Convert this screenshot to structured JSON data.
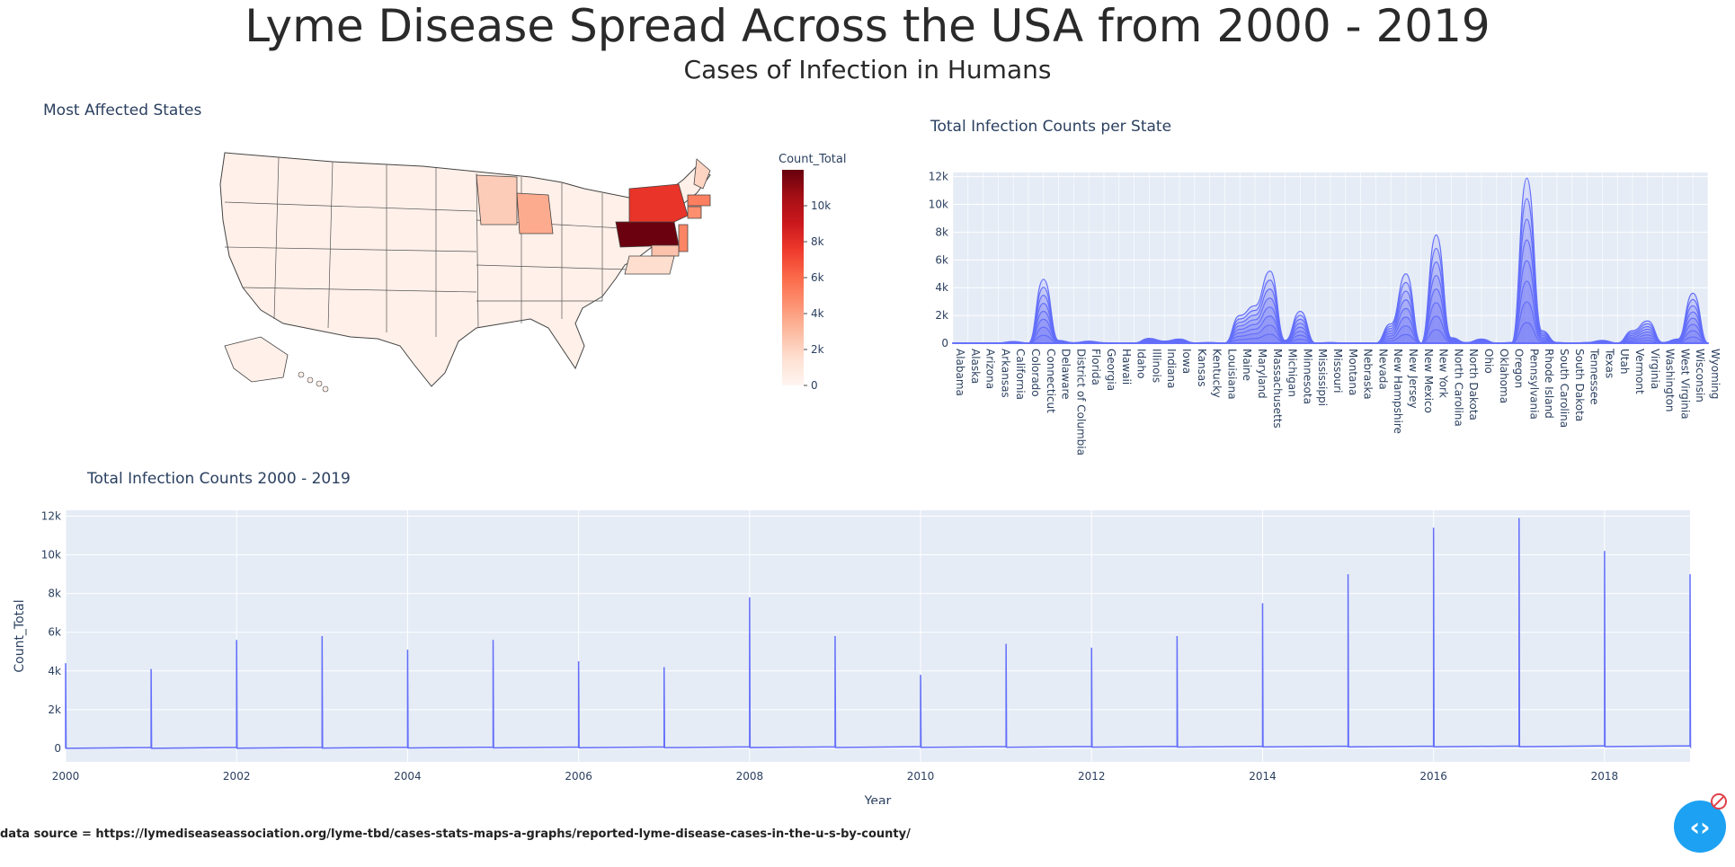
{
  "header": {
    "title": "Lyme Disease Spread Across the USA from 2000 - 2019",
    "subtitle": "Cases of Infection in Humans"
  },
  "footer": {
    "source_text": "data source = https://lymediseaseassociation.org/lyme-tbd/cases-stats-maps-a-graphs/reported-lyme-disease-cases-in-the-u-s-by-county/"
  },
  "colors": {
    "plot_bg": "#e5ecf6",
    "trace": "#636efa",
    "grid": "#ffffff",
    "fab": "#1da1f2",
    "block_icon": "#e0414a"
  },
  "icons": [
    "chevron-left-right-icon",
    "block-icon"
  ],
  "chart_data": [
    {
      "type": "choropleth",
      "title": "Most Affected States",
      "colorbar_title": "Count_Total",
      "colorbar_ticks": [
        "0",
        "2k",
        "4k",
        "6k",
        "8k",
        "10k"
      ],
      "zrange": [
        0,
        12000
      ],
      "colorscale": [
        "#fff5f0",
        "#fee0d2",
        "#fcbba1",
        "#fc9272",
        "#fb6a4a",
        "#ef3b2c",
        "#cb181d",
        "#a50f15",
        "#67000d"
      ],
      "highlighted_states": {
        "Pennsylvania": 11900,
        "New York": 7800,
        "New Jersey": 5000,
        "Connecticut": 4600,
        "Massachusetts": 5200,
        "Wisconsin": 3600,
        "Minnesota": 2300,
        "Maine": 2000,
        "Maryland": 2700,
        "Virginia": 1600,
        "New Hampshire": 1400,
        "Vermont": 900,
        "Delaware": 1000,
        "Rhode Island": 900
      }
    },
    {
      "type": "area",
      "title": "Total Infection Counts per State",
      "ylim": [
        0,
        12300
      ],
      "yticks": [
        "0",
        "2k",
        "4k",
        "6k",
        "8k",
        "10k",
        "12k"
      ],
      "categories": [
        "Alabama",
        "Alaska",
        "Arizona",
        "Arkansas",
        "California",
        "Colorado",
        "Connecticut",
        "Delaware",
        "District of Columbia",
        "Florida",
        "Georgia",
        "Hawaii",
        "Idaho",
        "Illinois",
        "Indiana",
        "Iowa",
        "Kansas",
        "Kentucky",
        "Louisiana",
        "Maine",
        "Maryland",
        "Massachusetts",
        "Michigan",
        "Minnesota",
        "Mississippi",
        "Missouri",
        "Montana",
        "Nebraska",
        "Nevada",
        "New Hampshire",
        "New Jersey",
        "New Mexico",
        "New York",
        "North Carolina",
        "North Dakota",
        "Ohio",
        "Oklahoma",
        "Oregon",
        "Pennsylvania",
        "Rhode Island",
        "South Carolina",
        "South Dakota",
        "Tennessee",
        "Texas",
        "Utah",
        "Vermont",
        "Virginia",
        "Washington",
        "West Virginia",
        "Wisconsin",
        "Wyoming"
      ],
      "values": [
        20,
        10,
        10,
        10,
        120,
        10,
        4600,
        200,
        30,
        150,
        30,
        5,
        10,
        350,
        150,
        300,
        20,
        50,
        10,
        2000,
        2700,
        5200,
        200,
        2300,
        10,
        50,
        5,
        10,
        5,
        1400,
        5000,
        10,
        7800,
        400,
        40,
        300,
        10,
        50,
        11900,
        900,
        50,
        10,
        50,
        200,
        10,
        900,
        1600,
        50,
        300,
        3600,
        10
      ]
    },
    {
      "type": "line",
      "title": "Total Infection Counts 2000 - 2019",
      "xlabel": "Year",
      "ylabel": "Count_Total",
      "xlim": [
        2000,
        2019
      ],
      "ylim": [
        -700,
        12300
      ],
      "xticks": [
        "2000",
        "2002",
        "2004",
        "2006",
        "2008",
        "2010",
        "2012",
        "2014",
        "2016",
        "2018"
      ],
      "yticks": [
        "0",
        "2k",
        "4k",
        "6k",
        "8k",
        "10k",
        "12k"
      ],
      "x": [
        2000,
        2001,
        2002,
        2003,
        2004,
        2005,
        2006,
        2007,
        2008,
        2009,
        2010,
        2011,
        2012,
        2013,
        2014,
        2015,
        2016,
        2017,
        2018,
        2019
      ],
      "peaks": [
        4400,
        4100,
        5600,
        5800,
        5100,
        5600,
        4500,
        4200,
        7800,
        5800,
        3800,
        5400,
        5200,
        5800,
        7500,
        9000,
        11400,
        11900,
        10200,
        9000
      ]
    }
  ]
}
